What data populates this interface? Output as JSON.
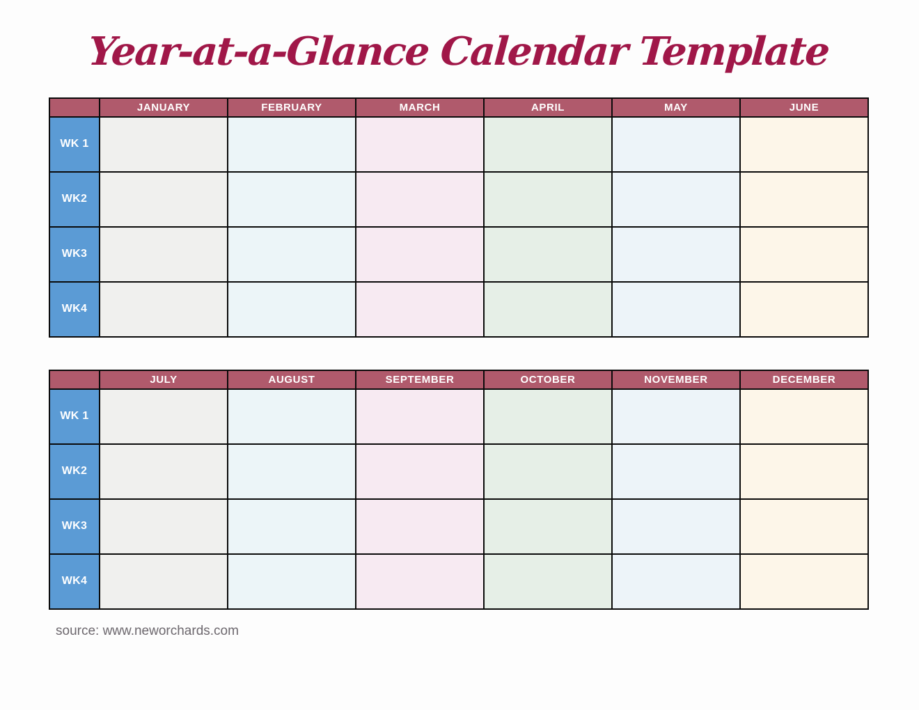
{
  "page": {
    "title": "Year-at-a-Glance Calendar Template",
    "source_line": "source: www.neworchards.com"
  },
  "colors": {
    "title_color": "#a01748",
    "header_bg": "#b05a6c",
    "week_bg": "#5b9bd5",
    "grid_line": "#0a0a0a",
    "header_text": "#ffffff",
    "week_text": "#ffffff",
    "source_color": "#6d686e",
    "page_bg": "#fdfdfd",
    "month_cell_colors": [
      "#f0f0ee",
      "#ecf5f8",
      "#f7eaf2",
      "#e6efe7",
      "#edf4f9",
      "#fdf6e9"
    ]
  },
  "tables": [
    {
      "months": [
        "JANUARY",
        "FEBRUARY",
        "MARCH",
        "APRIL",
        "MAY",
        "JUNE"
      ],
      "weeks": [
        "WK 1",
        "WK2",
        "WK3",
        "WK4"
      ]
    },
    {
      "months": [
        "JULY",
        "AUGUST",
        "SEPTEMBER",
        "OCTOBER",
        "NOVEMBER",
        "DECEMBER"
      ],
      "weeks": [
        "WK 1",
        "WK2",
        "WK3",
        "WK4"
      ]
    }
  ]
}
